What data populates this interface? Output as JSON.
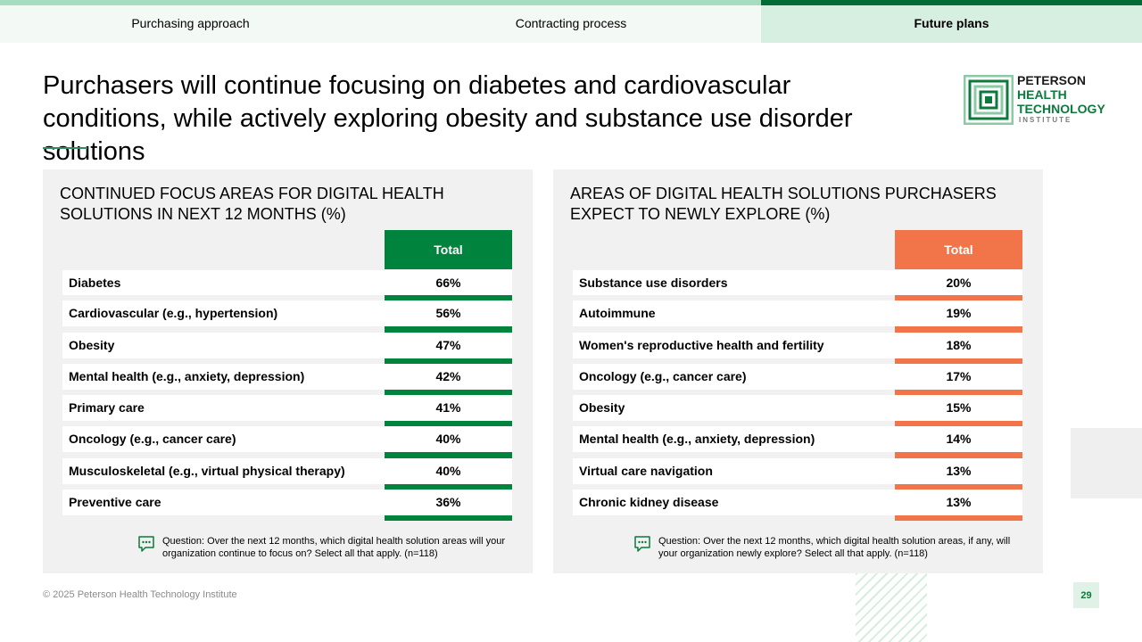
{
  "nav": {
    "tabs": [
      {
        "label": "Purchasing approach"
      },
      {
        "label": "Contracting process"
      },
      {
        "label": "Future plans"
      }
    ]
  },
  "title": "Purchasers will continue focusing on diabetes and cardiovascular conditions, while actively exploring obesity and substance use disorder solutions",
  "logo": {
    "line1": "PETERSON",
    "line2": "HEALTH",
    "line3": "TECHNOLOGY",
    "line4": "INSTITUTE"
  },
  "left_panel": {
    "title": "CONTINUED FOCUS AREAS FOR DIGITAL HEALTH SOLUTIONS IN NEXT 12 MONTHS (%)",
    "column_header": "Total",
    "rows": [
      {
        "label": "Diabetes",
        "value": "66%"
      },
      {
        "label": "Cardiovascular (e.g., hypertension)",
        "value": "56%"
      },
      {
        "label": "Obesity",
        "value": "47%"
      },
      {
        "label": "Mental health (e.g., anxiety, depression)",
        "value": "42%"
      },
      {
        "label": "Primary care",
        "value": "41%"
      },
      {
        "label": "Oncology (e.g., cancer care)",
        "value": "40%"
      },
      {
        "label": "Musculoskeletal (e.g., virtual physical therapy)",
        "value": "40%"
      },
      {
        "label": "Preventive care",
        "value": "36%"
      }
    ],
    "question": "Question: Over the next 12 months, which digital health solution areas will your organization continue to focus on? Select all that apply. (n=118)"
  },
  "right_panel": {
    "title": "AREAS OF DIGITAL HEALTH SOLUTIONS PURCHASERS EXPECT TO NEWLY EXPLORE (%)",
    "column_header": "Total",
    "rows": [
      {
        "label": "Substance use disorders",
        "value": "20%"
      },
      {
        "label": "Autoimmune",
        "value": "19%"
      },
      {
        "label": "Women's reproductive health and fertility",
        "value": "18%"
      },
      {
        "label": "Oncology (e.g., cancer care)",
        "value": "17%"
      },
      {
        "label": "Obesity",
        "value": "15%"
      },
      {
        "label": "Mental health (e.g., anxiety, depression)",
        "value": "14%"
      },
      {
        "label": "Virtual care navigation",
        "value": "13%"
      },
      {
        "label": "Chronic kidney disease",
        "value": "13%"
      }
    ],
    "question": "Question: Over the next 12 months, which digital health solution areas, if any, will your organization newly explore? Select all that apply. (n=118)"
  },
  "footer": {
    "copyright": "© 2025 Peterson Health Technology Institute",
    "page_number": "29"
  },
  "colors": {
    "green": "#00843d",
    "orange": "#f2754a",
    "dark_green": "#006b34"
  }
}
